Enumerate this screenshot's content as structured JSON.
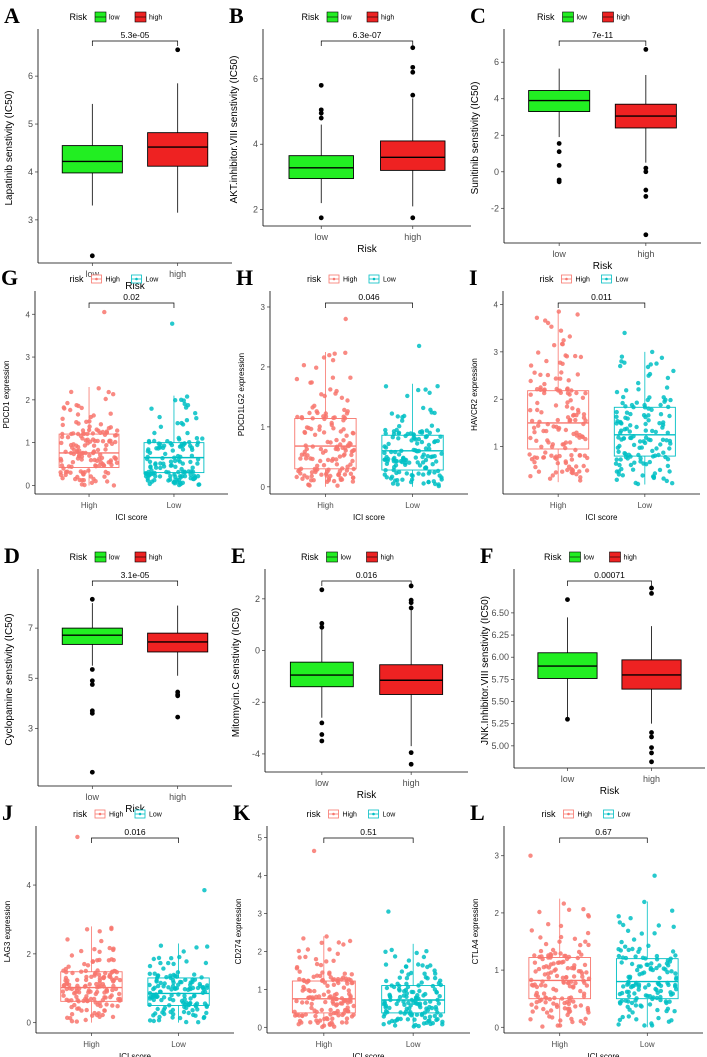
{
  "chart_data": [
    {
      "letter": "A",
      "type": "box",
      "style": "filled",
      "legend_title": "Risk",
      "groups": [
        "low",
        "high"
      ],
      "colors": [
        "#22ee22",
        "#ee2222"
      ],
      "xlabel": "Risk",
      "ylabel": "Lapatinib senstivity (IC50)",
      "ylim": [
        2.1,
        6.9
      ],
      "yticks": [
        3,
        4,
        5,
        6
      ],
      "pvalue": "5.3e-05",
      "boxes": [
        {
          "group": "low",
          "min": 3.3,
          "q1": 3.98,
          "median": 4.22,
          "q3": 4.55,
          "max": 5.42,
          "outliers": [
            2.25
          ]
        },
        {
          "group": "high",
          "min": 3.15,
          "q1": 4.12,
          "median": 4.52,
          "q3": 4.82,
          "max": 5.85,
          "outliers": [
            6.55
          ]
        }
      ]
    },
    {
      "letter": "B",
      "type": "box",
      "style": "filled",
      "legend_title": "Risk",
      "groups": [
        "low",
        "high"
      ],
      "colors": [
        "#22ee22",
        "#ee2222"
      ],
      "xlabel": "Risk",
      "ylabel": "AKT.inhibitor.VIII senstivity (IC50)",
      "ylim": [
        1.5,
        7.4
      ],
      "yticks": [
        2,
        4,
        6
      ],
      "pvalue": "6.3e-07",
      "boxes": [
        {
          "group": "low",
          "min": 2.2,
          "q1": 2.95,
          "median": 3.28,
          "q3": 3.65,
          "max": 4.6,
          "outliers": [
            1.75,
            4.8,
            4.95,
            5.05,
            5.8
          ]
        },
        {
          "group": "high",
          "min": 2.1,
          "q1": 3.2,
          "median": 3.6,
          "q3": 4.1,
          "max": 5.4,
          "outliers": [
            1.75,
            5.5,
            6.2,
            6.35,
            6.95
          ]
        }
      ]
    },
    {
      "letter": "C",
      "type": "box",
      "style": "filled",
      "legend_title": "Risk",
      "groups": [
        "low",
        "high"
      ],
      "colors": [
        "#22ee22",
        "#ee2222"
      ],
      "xlabel": "Risk",
      "ylabel": "Sunitinib senstivity (IC50)",
      "ylim": [
        -3.9,
        7.6
      ],
      "yticks": [
        -2,
        0,
        2,
        4,
        6
      ],
      "pvalue": "7e-11",
      "boxes": [
        {
          "group": "low",
          "min": 1.9,
          "q1": 3.3,
          "median": 3.9,
          "q3": 4.45,
          "max": 5.65,
          "outliers": [
            1.55,
            1.1,
            0.35,
            -0.45,
            -0.55
          ]
        },
        {
          "group": "high",
          "min": 0.5,
          "q1": 2.4,
          "median": 3.05,
          "q3": 3.7,
          "max": 5.3,
          "outliers": [
            6.7,
            0.2,
            0.0,
            -1.0,
            -1.35,
            -3.45
          ]
        }
      ]
    },
    {
      "letter": "G",
      "type": "box",
      "style": "hollow_jitter",
      "legend_title": "risk",
      "groups": [
        "High",
        "Low"
      ],
      "colors": [
        "#f8766d",
        "#00bfc4"
      ],
      "xlabel": "ICI score",
      "ylabel": "PDCD1 expression",
      "ylim": [
        -0.2,
        4.45
      ],
      "yticks": [
        0,
        1,
        2,
        3,
        4
      ],
      "pvalue": "0.02",
      "boxes": [
        {
          "group": "High",
          "min": 0.0,
          "q1": 0.42,
          "median": 0.76,
          "q3": 1.2,
          "max": 2.3,
          "n": 150,
          "maxpt": 4.05,
          "seed": 11
        },
        {
          "group": "Low",
          "min": 0.0,
          "q1": 0.3,
          "median": 0.65,
          "q3": 1.0,
          "max": 2.1,
          "n": 140,
          "maxpt": 3.78,
          "seed": 23
        }
      ]
    },
    {
      "letter": "H",
      "type": "box",
      "style": "hollow_jitter",
      "legend_title": "risk",
      "groups": [
        "High",
        "Low"
      ],
      "colors": [
        "#f8766d",
        "#00bfc4"
      ],
      "xlabel": "ICI score",
      "ylabel": "PDCD1LG2 expression",
      "ylim": [
        -0.12,
        3.2
      ],
      "yticks": [
        0,
        1,
        2,
        3
      ],
      "pvalue": "0.046",
      "boxes": [
        {
          "group": "High",
          "min": 0.0,
          "q1": 0.3,
          "median": 0.68,
          "q3": 1.14,
          "max": 2.25,
          "n": 150,
          "maxpt": 2.8,
          "seed": 37
        },
        {
          "group": "Low",
          "min": 0.0,
          "q1": 0.28,
          "median": 0.6,
          "q3": 0.86,
          "max": 1.72,
          "n": 140,
          "maxpt": 2.35,
          "seed": 41
        }
      ]
    },
    {
      "letter": "I",
      "type": "box",
      "style": "hollow_jitter",
      "legend_title": "risk",
      "groups": [
        "High",
        "Low"
      ],
      "colors": [
        "#f8766d",
        "#00bfc4"
      ],
      "xlabel": "ICI score",
      "ylabel": "HAVCR2 expression",
      "ylim": [
        0.0,
        4.2
      ],
      "yticks": [
        1,
        2,
        3,
        4
      ],
      "pvalue": "0.011",
      "boxes": [
        {
          "group": "High",
          "min": 0.25,
          "q1": 0.95,
          "median": 1.5,
          "q3": 2.18,
          "max": 3.85,
          "n": 150,
          "maxpt": 3.85,
          "seed": 53
        },
        {
          "group": "Low",
          "min": 0.2,
          "q1": 0.8,
          "median": 1.25,
          "q3": 1.83,
          "max": 3.0,
          "n": 140,
          "maxpt": 3.4,
          "seed": 67
        }
      ]
    },
    {
      "letter": "D",
      "type": "box",
      "style": "filled",
      "legend_title": "Risk",
      "groups": [
        "low",
        "high"
      ],
      "colors": [
        "#22ee22",
        "#ee2222"
      ],
      "xlabel": "Risk",
      "ylabel": "Cyclopamine senstivity (IC50)",
      "ylim": [
        0.7,
        9.2
      ],
      "yticks": [
        3,
        5,
        7
      ],
      "pvalue": "3.1e-05",
      "boxes": [
        {
          "group": "low",
          "min": 5.5,
          "q1": 6.35,
          "median": 6.72,
          "q3": 7.0,
          "max": 8.0,
          "outliers": [
            8.15,
            5.35,
            4.9,
            4.75,
            3.7,
            3.6,
            1.25
          ]
        },
        {
          "group": "high",
          "min": 5.1,
          "q1": 6.05,
          "median": 6.45,
          "q3": 6.8,
          "max": 7.9,
          "outliers": [
            4.45,
            4.35,
            4.3,
            3.45
          ]
        }
      ]
    },
    {
      "letter": "E",
      "type": "box",
      "style": "filled",
      "legend_title": "Risk",
      "groups": [
        "low",
        "high"
      ],
      "colors": [
        "#22ee22",
        "#ee2222"
      ],
      "xlabel": "Risk",
      "ylabel": "Mitomycin.C senstivity (IC50)",
      "ylim": [
        -4.7,
        3.0
      ],
      "yticks": [
        -4,
        -2,
        0,
        2
      ],
      "pvalue": "0.016",
      "boxes": [
        {
          "group": "low",
          "min": -2.6,
          "q1": -1.4,
          "median": -0.95,
          "q3": -0.45,
          "max": 0.9,
          "outliers": [
            2.35,
            1.05,
            0.9,
            -2.8,
            -3.25,
            -3.5
          ]
        },
        {
          "group": "high",
          "min": -3.7,
          "q1": -1.7,
          "median": -1.15,
          "q3": -0.55,
          "max": 1.6,
          "outliers": [
            1.65,
            1.85,
            1.95,
            2.5,
            -3.95,
            -4.4
          ]
        }
      ]
    },
    {
      "letter": "F",
      "type": "box",
      "style": "filled",
      "legend_title": "Risk",
      "groups": [
        "low",
        "high"
      ],
      "colors": [
        "#22ee22",
        "#ee2222"
      ],
      "xlabel": "Risk",
      "ylabel": "JNK.Inhibitor.VIII senstivity (IC50)",
      "ylim": [
        4.75,
        6.95
      ],
      "yticks": [
        5.0,
        5.25,
        5.5,
        5.75,
        6.0,
        6.25,
        6.5
      ],
      "ytick_labels": [
        "5.00",
        "5.25",
        "5.50",
        "5.75",
        "6.00",
        "6.25",
        "6.50"
      ],
      "pvalue": "0.00071",
      "boxes": [
        {
          "group": "low",
          "min": 5.3,
          "q1": 5.76,
          "median": 5.9,
          "q3": 6.05,
          "max": 6.45,
          "outliers": [
            6.65,
            5.3
          ]
        },
        {
          "group": "high",
          "min": 5.25,
          "q1": 5.64,
          "median": 5.8,
          "q3": 5.97,
          "max": 6.35,
          "outliers": [
            6.72,
            6.78,
            5.15,
            5.1,
            4.98,
            4.92,
            4.82
          ]
        }
      ]
    },
    {
      "letter": "J",
      "type": "box",
      "style": "hollow_jitter",
      "legend_title": "risk",
      "groups": [
        "High",
        "Low"
      ],
      "colors": [
        "#f8766d",
        "#00bfc4"
      ],
      "xlabel": "ICI score",
      "ylabel": "LAG3 expression",
      "ylim": [
        -0.3,
        5.6
      ],
      "yticks": [
        0,
        2,
        4
      ],
      "pvalue": "0.016",
      "boxes": [
        {
          "group": "High",
          "min": 0.0,
          "q1": 0.62,
          "median": 1.02,
          "q3": 1.48,
          "max": 2.8,
          "n": 150,
          "maxpt": 5.4,
          "seed": 71
        },
        {
          "group": "Low",
          "min": 0.0,
          "q1": 0.5,
          "median": 0.85,
          "q3": 1.3,
          "max": 2.3,
          "n": 140,
          "maxpt": 3.85,
          "seed": 83
        }
      ]
    },
    {
      "letter": "K",
      "type": "box",
      "style": "hollow_jitter",
      "legend_title": "risk",
      "groups": [
        "High",
        "Low"
      ],
      "colors": [
        "#f8766d",
        "#00bfc4"
      ],
      "xlabel": "ICI score",
      "ylabel": "CD274 expression",
      "ylim": [
        -0.15,
        5.2
      ],
      "yticks": [
        0,
        1,
        2,
        3,
        4,
        5
      ],
      "pvalue": "0.51",
      "boxes": [
        {
          "group": "High",
          "min": 0.0,
          "q1": 0.38,
          "median": 0.75,
          "q3": 1.22,
          "max": 2.4,
          "n": 150,
          "maxpt": 4.65,
          "seed": 97
        },
        {
          "group": "Low",
          "min": 0.0,
          "q1": 0.38,
          "median": 0.72,
          "q3": 1.1,
          "max": 2.2,
          "n": 140,
          "maxpt": 3.05,
          "seed": 101
        }
      ]
    },
    {
      "letter": "L",
      "type": "box",
      "style": "hollow_jitter",
      "legend_title": "risk",
      "groups": [
        "High",
        "Low"
      ],
      "colors": [
        "#f8766d",
        "#00bfc4"
      ],
      "xlabel": "ICI score",
      "ylabel": "CTLA4 expression",
      "ylim": [
        -0.1,
        3.45
      ],
      "yticks": [
        0,
        1,
        2,
        3
      ],
      "pvalue": "0.67",
      "boxes": [
        {
          "group": "High",
          "min": 0.0,
          "q1": 0.5,
          "median": 0.82,
          "q3": 1.22,
          "max": 2.25,
          "n": 150,
          "maxpt": 3.0,
          "seed": 113
        },
        {
          "group": "Low",
          "min": 0.0,
          "q1": 0.5,
          "median": 0.8,
          "q3": 1.2,
          "max": 2.2,
          "n": 140,
          "maxpt": 2.65,
          "seed": 127
        }
      ]
    }
  ]
}
